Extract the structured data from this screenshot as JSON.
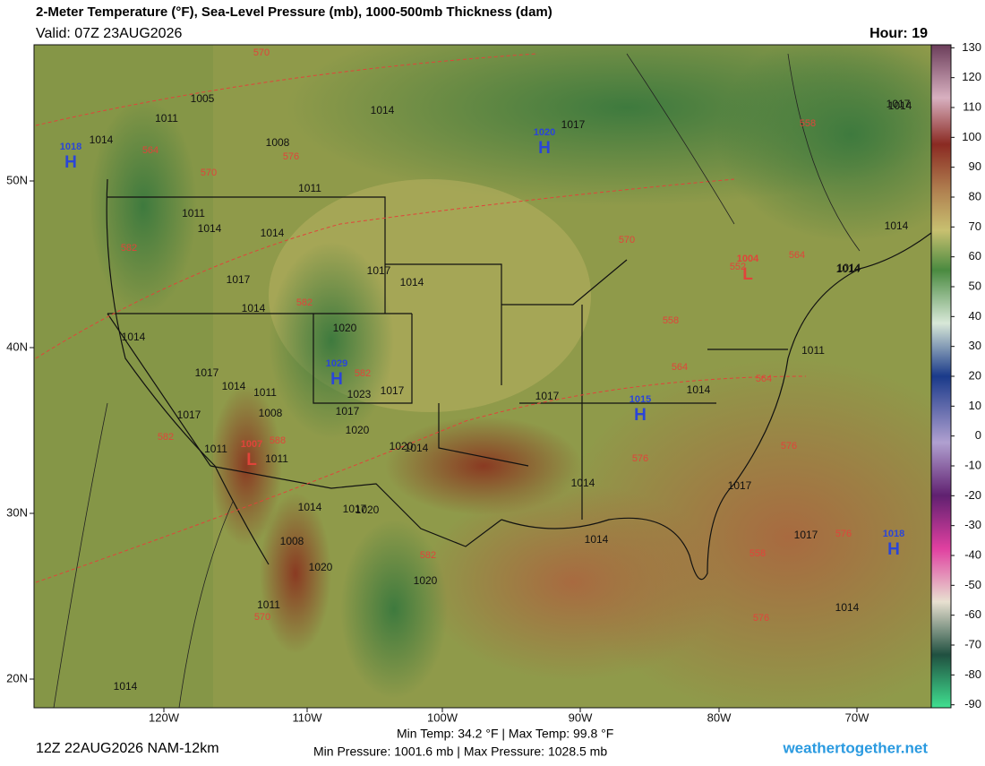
{
  "header": {
    "title": "2-Meter Temperature (°F), Sea-Level Pressure (mb), 1000-500mb Thickness (dam)",
    "valid": "Valid: 07Z 23AUG2026",
    "hour": "Hour: 19"
  },
  "colorbar": {
    "lim": [
      -91,
      131
    ],
    "ticks": [
      130,
      120,
      110,
      100,
      90,
      80,
      70,
      60,
      50,
      40,
      30,
      20,
      10,
      0,
      -10,
      -20,
      -30,
      -40,
      -50,
      -60,
      -70,
      -80,
      -90
    ]
  },
  "latitudes": [
    "50N",
    "40N",
    "30N",
    "20N"
  ],
  "longitudes": [
    "120W",
    "110W",
    "100W",
    "90W",
    "80W",
    "70W"
  ],
  "centers": [
    {
      "type": "H",
      "value": "1018"
    },
    {
      "type": "H",
      "value": "1020"
    },
    {
      "type": "H",
      "value": "1029"
    },
    {
      "type": "H",
      "value": "1015"
    },
    {
      "type": "H",
      "value": "1018"
    },
    {
      "type": "L",
      "value": "1007"
    },
    {
      "type": "L",
      "value": "1004"
    }
  ],
  "isobar_labels": [
    "1005",
    "1011",
    "1014",
    "1008",
    "1011",
    "1011",
    "1014",
    "1014",
    "1017",
    "1014",
    "1017",
    "1014",
    "1014",
    "1017",
    "1014",
    "1017",
    "1017",
    "1011",
    "1008",
    "1014",
    "1017",
    "1011",
    "1011",
    "1020",
    "1017",
    "1020",
    "1020",
    "1020",
    "1017",
    "1014",
    "1020",
    "1008",
    "1011",
    "1014",
    "1017",
    "1014",
    "1014",
    "1014",
    "1017",
    "1014",
    "1017",
    "1014",
    "1014",
    "1014",
    "1017",
    "1020",
    "1023",
    "1014",
    "1011",
    "1014"
  ],
  "thickness_labels": [
    "570",
    "564",
    "570",
    "576",
    "558",
    "582",
    "582",
    "582",
    "588",
    "582",
    "582",
    "564",
    "558",
    "564",
    "570",
    "576",
    "576",
    "552",
    "564",
    "558",
    "576",
    "570",
    "576"
  ],
  "footer": {
    "model": "12Z 22AUG2026 NAM-12km",
    "temps": "Min Temp: 34.2 °F | Max Temp:  99.8 °F",
    "pressures": "Min Pressure: 1001.6 mb | Max Pressure: 1028.5 mb",
    "site": "weathertogether.net"
  }
}
